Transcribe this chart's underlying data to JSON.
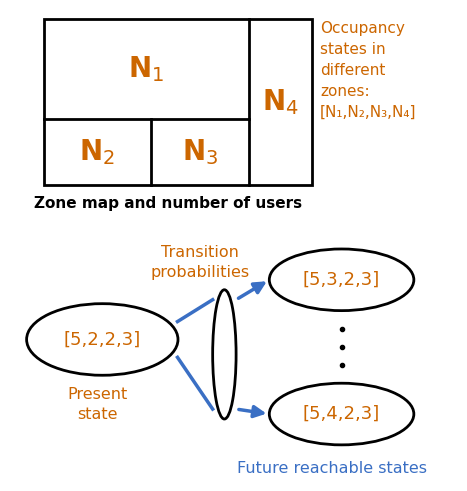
{
  "bg_color": "#ffffff",
  "text_color": "#cc6600",
  "arrow_color": "#3a6fc4",
  "black": "#000000",
  "N1_label": "N$_1$",
  "N2_label": "N$_2$",
  "N3_label": "N$_3$",
  "N4_label": "N$_4$",
  "zone_caption": "Zone map and number of users",
  "occ_text": "Occupancy\nstates in\ndifferent\nzones:\n[N₁,N₂,N₃,N₄]",
  "present_state_label": "[5,2,2,3]",
  "future_state1_label": "[5,3,2,3]",
  "future_state2_label": "[5,4,2,3]",
  "transition_label": "Transition\nprobabilities",
  "present_label": "Present\nstate",
  "future_label": "Future reachable states"
}
